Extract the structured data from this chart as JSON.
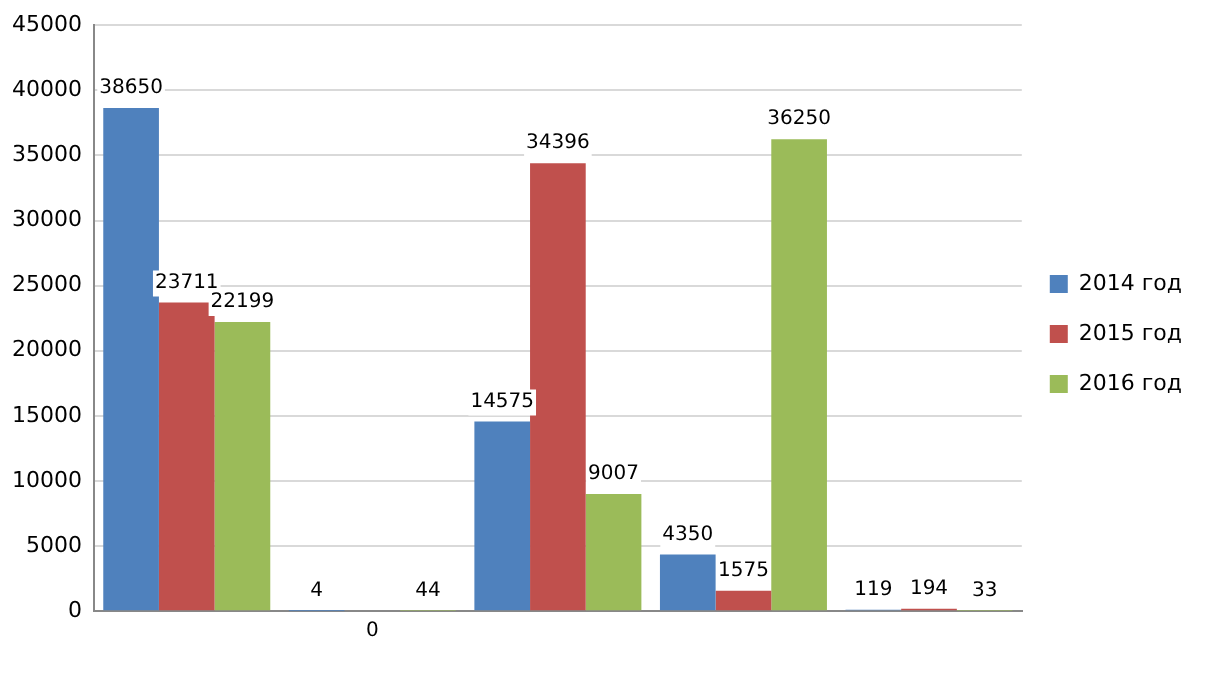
{
  "chart_data": {
    "type": "bar",
    "categories": [
      null,
      null,
      null,
      null,
      null
    ],
    "series": [
      {
        "name": "2014 год",
        "color": "#4f81bd",
        "values": [
          38650,
          4,
          14575,
          4350,
          119
        ]
      },
      {
        "name": "2015 год",
        "color": "#c0504d",
        "values": [
          23711,
          0,
          34396,
          1575,
          194
        ]
      },
      {
        "name": "2016 год",
        "color": "#9bbb59",
        "values": [
          22199,
          44,
          9007,
          36250,
          33
        ]
      }
    ],
    "ylim": [
      0,
      45000
    ],
    "yticks": [
      0,
      5000,
      10000,
      15000,
      20000,
      25000,
      30000,
      35000,
      40000,
      45000
    ],
    "grid": "y",
    "legend": "right",
    "data_labels": true
  }
}
